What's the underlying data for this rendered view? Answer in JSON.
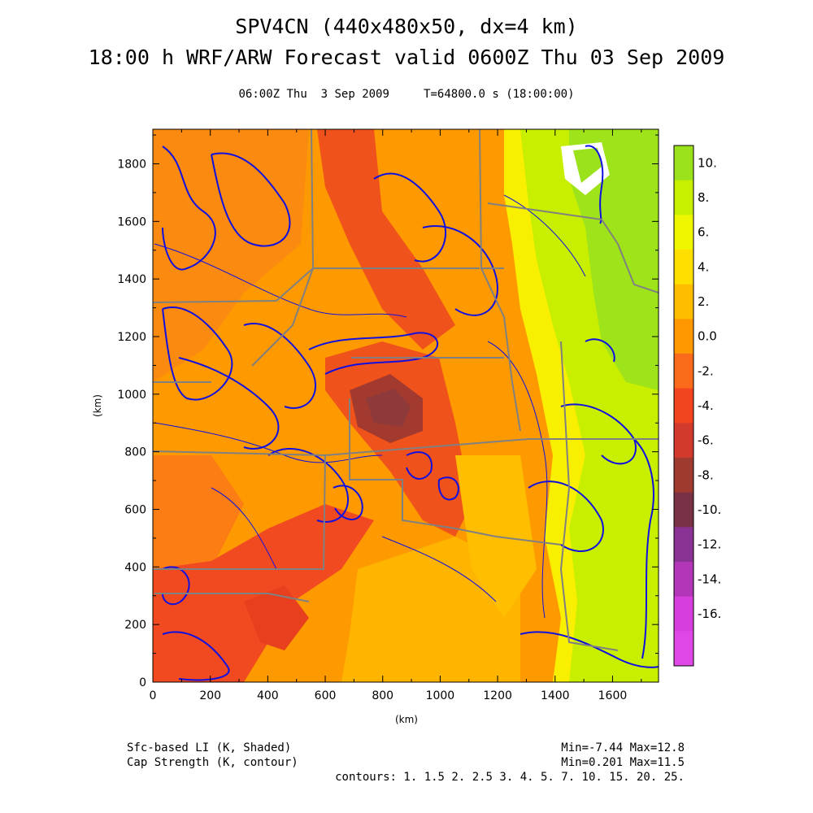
{
  "chart_data": {
    "type": "heatmap",
    "title": "SPV4CN (440x480x50, dx=4 km)",
    "title2": "18:00 h WRF/ARW Forecast valid 0600Z Thu 03 Sep 2009",
    "subtitle": "06:00Z Thu  3 Sep 2009     T=64800.0 s (18:00:00)",
    "xlabel": "(km)",
    "ylabel": "(km)",
    "xlim": [
      0,
      1760
    ],
    "ylim": [
      0,
      1920
    ],
    "x_ticks": [
      "0",
      "200",
      "400",
      "600",
      "800",
      "1000",
      "1200",
      "1400",
      "1600"
    ],
    "y_ticks": [
      "0",
      "200",
      "400",
      "600",
      "800",
      "1000",
      "1200",
      "1400",
      "1600",
      "1800"
    ],
    "colorbar": {
      "labels": [
        "10.",
        "8.",
        "6.",
        "4.",
        "2.",
        "0.0",
        "-2.",
        "-4.",
        "-6.",
        "-8.",
        "-10.",
        "-12.",
        "-14.",
        "-16."
      ],
      "colors": [
        "#9be11c",
        "#c7f000",
        "#eef600",
        "#ffdf00",
        "#ffbd00",
        "#fe9700",
        "#fb6a1a",
        "#f2441f",
        "#d23a2c",
        "#9e3a2e",
        "#7b3145",
        "#8b3395",
        "#b336b8",
        "#d63fdb",
        "#e048e6"
      ]
    },
    "legend": {
      "shaded_label": "Sfc-based LI (K, Shaded)",
      "shaded_stats": "Min=-7.44 Max=12.8",
      "contour_label": "Cap Strength (K, contour)",
      "contour_stats": "Min=0.201 Max=11.5",
      "contours": "contours: 1. 1.5 2. 2.5 3. 4. 5. 7. 10. 15. 20. 25."
    },
    "colors": {
      "contour": "#1010e0",
      "borders": "#808080"
    }
  }
}
